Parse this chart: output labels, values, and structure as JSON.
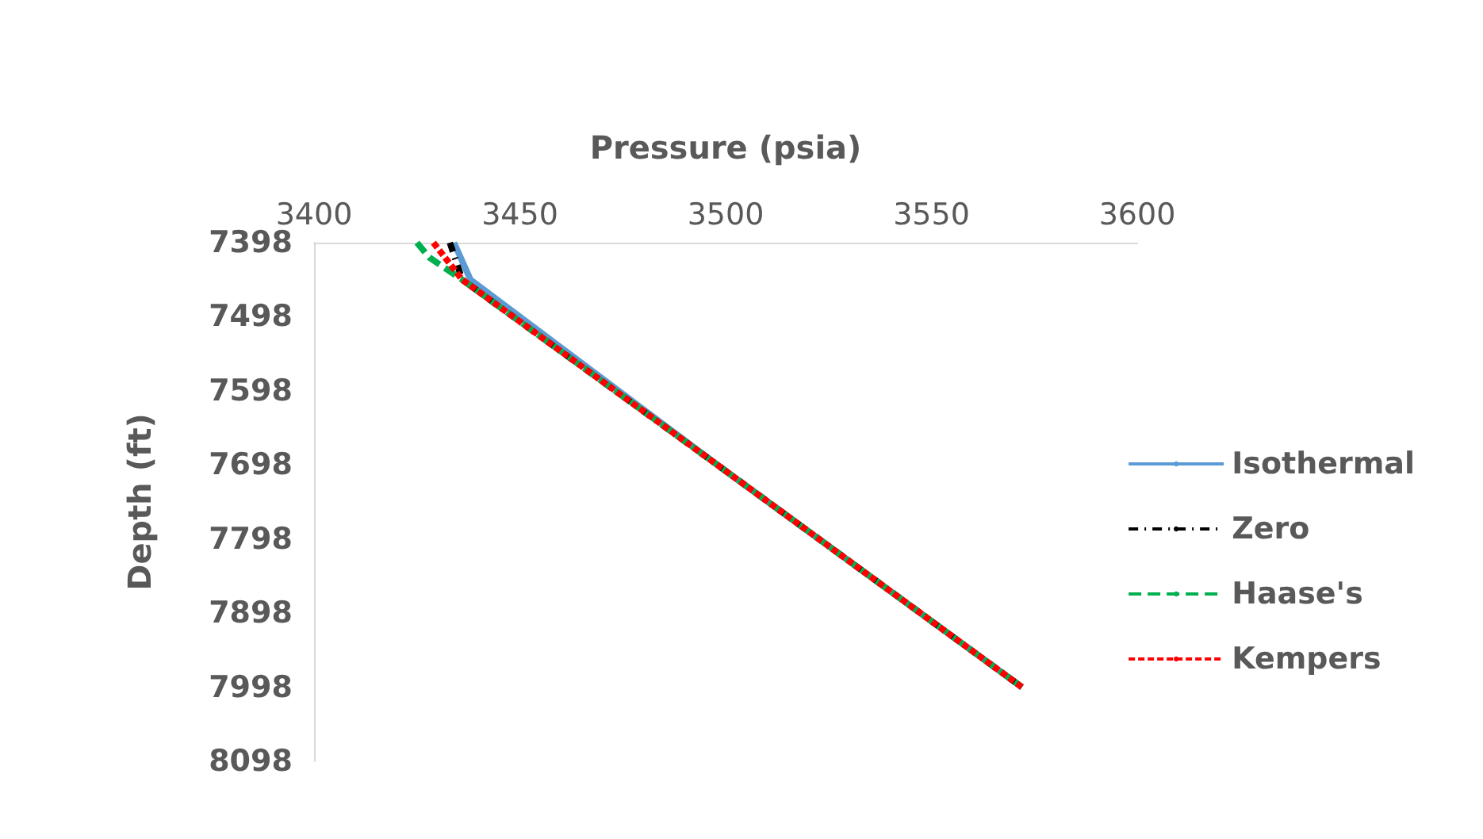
{
  "chart_data": {
    "type": "line",
    "xlabel": "Pressure (psia)",
    "ylabel": "Depth (ft)",
    "xlim": [
      3400,
      3600
    ],
    "xticks": [
      3400,
      3450,
      3500,
      3550,
      3600
    ],
    "ylim": [
      8098,
      7398
    ],
    "yticks": [
      7398,
      7498,
      7598,
      7698,
      7798,
      7898,
      7998,
      8098
    ],
    "grid": false,
    "legend": "right",
    "series": [
      {
        "name": "Isothermal",
        "color": "#5b9bd5",
        "line_style": "solid",
        "x": [
          3434,
          3438,
          3498,
          3572
        ],
        "values": [
          7398,
          7448,
          7698,
          7998
        ]
      },
      {
        "name": "Zero",
        "color": "#000000",
        "line_style": "dashdot",
        "x": [
          3433,
          3436,
          3498,
          3572
        ],
        "values": [
          7398,
          7448,
          7698,
          7998
        ]
      },
      {
        "name": "Haase's",
        "color": "#00b050",
        "line_style": "longdash",
        "x": [
          3425,
          3428,
          3436,
          3498,
          3572
        ],
        "values": [
          7398,
          7418,
          7448,
          7698,
          7998
        ]
      },
      {
        "name": "Kempers",
        "color": "#ff0000",
        "line_style": "dashed",
        "x": [
          3429,
          3436,
          3498,
          3572
        ],
        "values": [
          7398,
          7448,
          7698,
          7998
        ]
      }
    ]
  }
}
